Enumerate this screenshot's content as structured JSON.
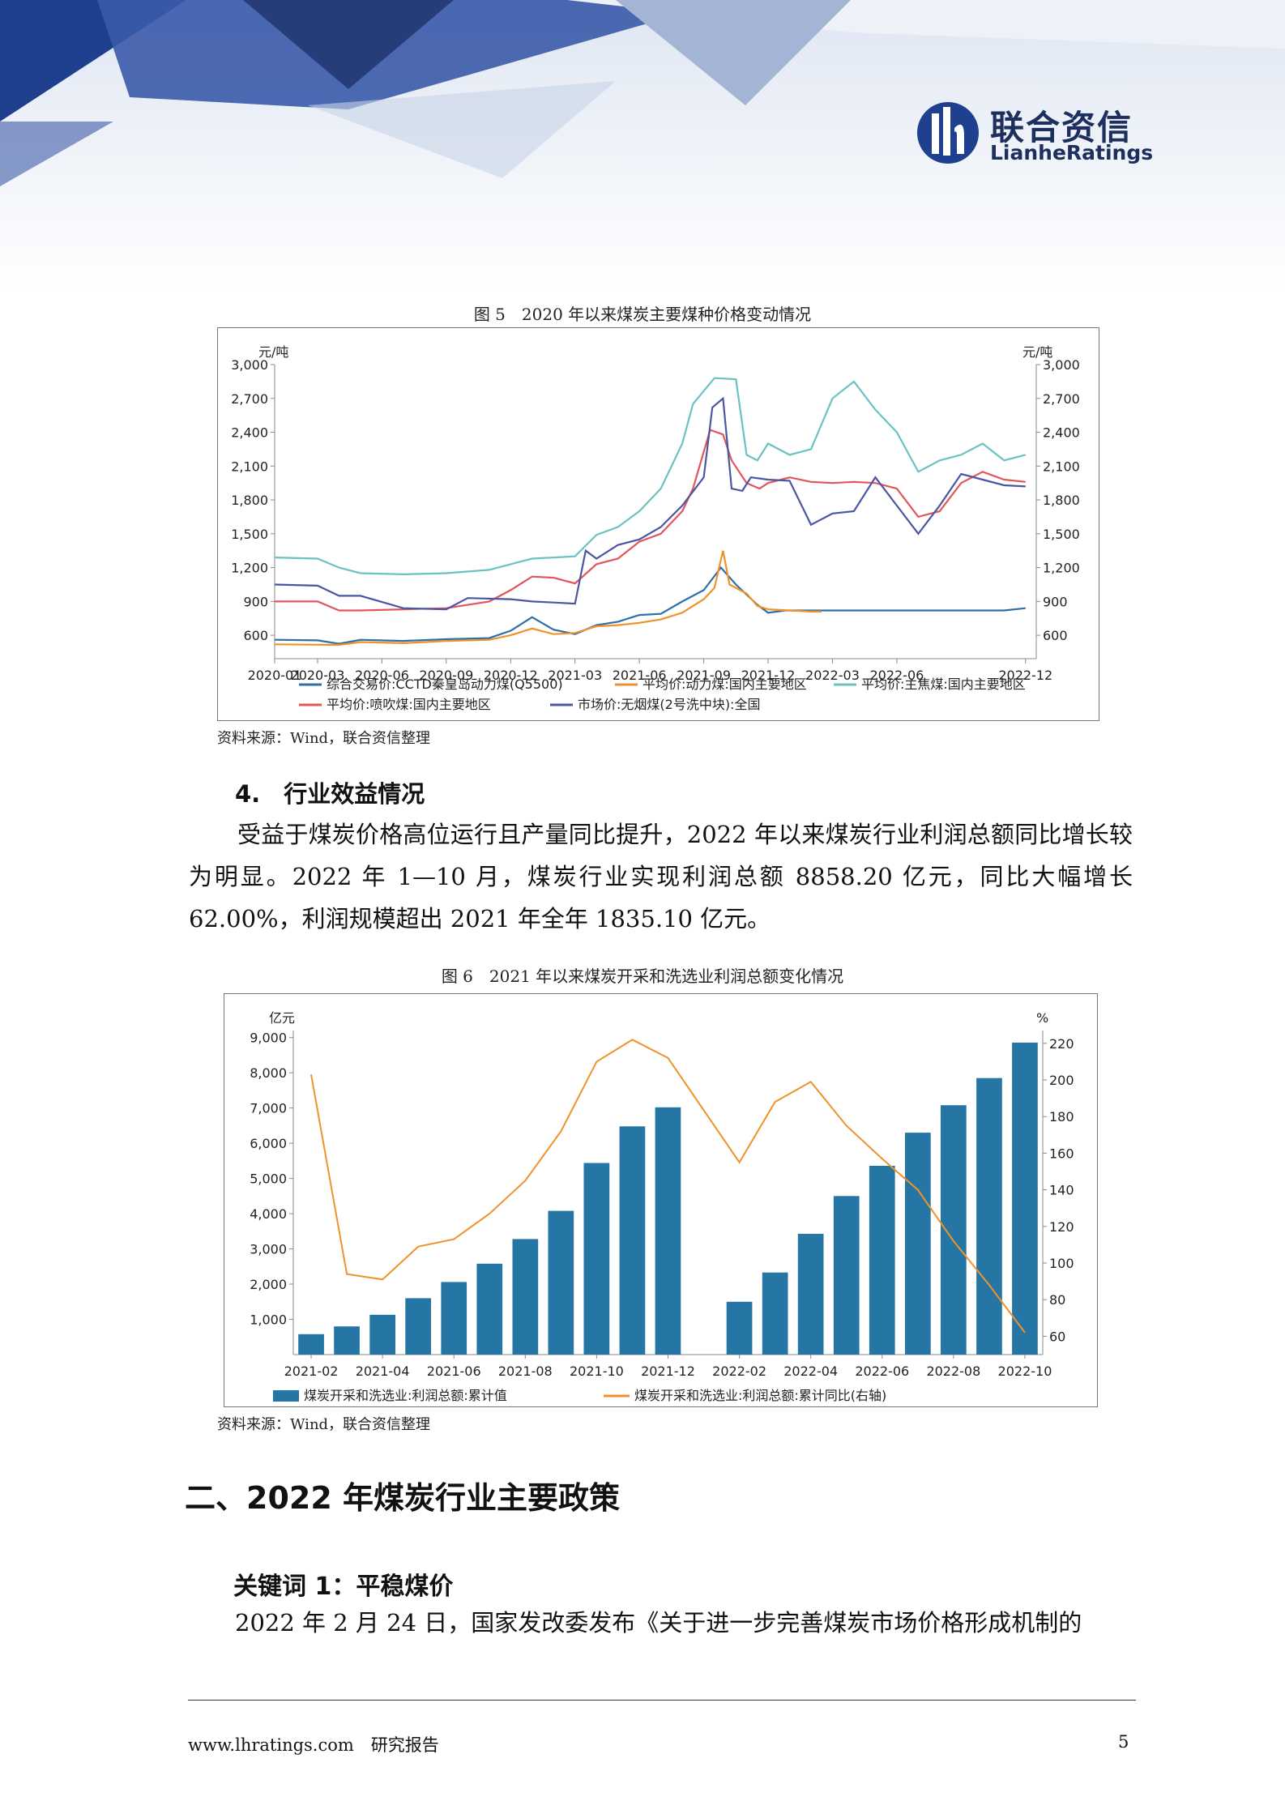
{
  "header": {
    "logo_cn": "联合资信",
    "logo_en": "LianheRatings"
  },
  "figure5": {
    "caption": "图 5　2020 年以来煤炭主要煤种价格变动情况",
    "source": "资料来源：Wind，联合资信整理",
    "chart_data": {
      "type": "line",
      "left_unit": "元/吨",
      "right_unit": "元/吨",
      "ylim": [
        450,
        3000
      ],
      "yticks": [
        "3,000",
        "2,700",
        "2,400",
        "2,100",
        "1,800",
        "1,500",
        "1,200",
        "900",
        "600"
      ],
      "ytick_values": [
        3000,
        2700,
        2400,
        2100,
        1800,
        1500,
        1200,
        900,
        600
      ],
      "xticks": [
        "2020-01",
        "2020-03",
        "2020-06",
        "2020-09",
        "2020-12",
        "2021-03",
        "2021-06",
        "2021-09",
        "2021-12",
        "2022-03",
        "2022-06",
        "2022-12"
      ],
      "xtick_months": [
        0,
        2,
        5,
        8,
        11,
        14,
        17,
        20,
        23,
        26,
        29,
        35
      ],
      "xlim_months": [
        0,
        35.5
      ],
      "series": [
        {
          "name": "综合交易价:CCTD秦皇岛动力煤(Q5500)",
          "color": "#2e6fa8",
          "points": [
            [
              0,
              560
            ],
            [
              2,
              555
            ],
            [
              3,
              525
            ],
            [
              4,
              560
            ],
            [
              6,
              550
            ],
            [
              8,
              565
            ],
            [
              10,
              575
            ],
            [
              11,
              640
            ],
            [
              12,
              760
            ],
            [
              13,
              650
            ],
            [
              14,
              610
            ],
            [
              15,
              690
            ],
            [
              16,
              720
            ],
            [
              17,
              780
            ],
            [
              18,
              790
            ],
            [
              19,
              900
            ],
            [
              20,
              1000
            ],
            [
              20.8,
              1200
            ],
            [
              21.5,
              1050
            ],
            [
              22.5,
              870
            ],
            [
              23,
              800
            ],
            [
              23.8,
              820
            ],
            [
              25,
              820
            ],
            [
              26,
              820
            ],
            [
              28,
              820
            ],
            [
              30,
              820
            ],
            [
              34,
              820
            ],
            [
              35,
              840
            ]
          ]
        },
        {
          "name": "平均价:动力煤:国内主要地区",
          "color": "#f0922b",
          "points": [
            [
              0,
              520
            ],
            [
              3,
              515
            ],
            [
              4,
              540
            ],
            [
              6,
              530
            ],
            [
              8,
              550
            ],
            [
              10,
              560
            ],
            [
              11,
              600
            ],
            [
              12,
              660
            ],
            [
              13,
              610
            ],
            [
              14,
              620
            ],
            [
              15,
              680
            ],
            [
              16,
              690
            ],
            [
              17,
              710
            ],
            [
              18,
              740
            ],
            [
              19,
              800
            ],
            [
              20,
              920
            ],
            [
              20.5,
              1020
            ],
            [
              20.9,
              1350
            ],
            [
              21.2,
              1050
            ],
            [
              22,
              970
            ],
            [
              22.5,
              860
            ],
            [
              23,
              830
            ],
            [
              24,
              820
            ],
            [
              25,
              810
            ],
            [
              25.5,
              810
            ]
          ]
        },
        {
          "name": "平均价:主焦煤:国内主要地区",
          "color": "#6ac2c2",
          "points": [
            [
              0,
              1290
            ],
            [
              2,
              1280
            ],
            [
              3,
              1200
            ],
            [
              4,
              1150
            ],
            [
              6,
              1140
            ],
            [
              8,
              1150
            ],
            [
              10,
              1180
            ],
            [
              11,
              1230
            ],
            [
              12,
              1280
            ],
            [
              13,
              1290
            ],
            [
              14,
              1300
            ],
            [
              15,
              1490
            ],
            [
              16,
              1560
            ],
            [
              17,
              1700
            ],
            [
              18,
              1900
            ],
            [
              19,
              2300
            ],
            [
              19.5,
              2650
            ],
            [
              20.5,
              2880
            ],
            [
              21.5,
              2870
            ],
            [
              22,
              2200
            ],
            [
              22.5,
              2150
            ],
            [
              23,
              2300
            ],
            [
              24,
              2200
            ],
            [
              25,
              2250
            ],
            [
              26,
              2700
            ],
            [
              27,
              2850
            ],
            [
              28,
              2600
            ],
            [
              29,
              2400
            ],
            [
              30,
              2050
            ],
            [
              31,
              2150
            ],
            [
              32,
              2200
            ],
            [
              33,
              2300
            ],
            [
              34,
              2150
            ],
            [
              35,
              2200
            ]
          ]
        },
        {
          "name": "平均价:喷吹煤:国内主要地区",
          "color": "#e0565a",
          "points": [
            [
              0,
              900
            ],
            [
              2,
              900
            ],
            [
              3,
              820
            ],
            [
              4,
              820
            ],
            [
              6,
              830
            ],
            [
              8,
              840
            ],
            [
              10,
              900
            ],
            [
              11,
              1000
            ],
            [
              12,
              1120
            ],
            [
              13,
              1110
            ],
            [
              14,
              1060
            ],
            [
              15,
              1230
            ],
            [
              16,
              1280
            ],
            [
              17,
              1430
            ],
            [
              18,
              1500
            ],
            [
              19,
              1700
            ],
            [
              19.5,
              1900
            ],
            [
              20.3,
              2420
            ],
            [
              20.9,
              2380
            ],
            [
              21.3,
              2150
            ],
            [
              22,
              1950
            ],
            [
              22.6,
              1900
            ],
            [
              23,
              1950
            ],
            [
              24,
              2000
            ],
            [
              25,
              1960
            ],
            [
              26,
              1950
            ],
            [
              27,
              1960
            ],
            [
              28,
              1950
            ],
            [
              29,
              1900
            ],
            [
              30,
              1650
            ],
            [
              31,
              1700
            ],
            [
              32,
              1950
            ],
            [
              33,
              2050
            ],
            [
              34,
              1980
            ],
            [
              35,
              1960
            ]
          ]
        },
        {
          "name": "市场价:无烟煤(2号洗中块):全国",
          "color": "#4b56a2",
          "points": [
            [
              0,
              1050
            ],
            [
              2,
              1040
            ],
            [
              3,
              950
            ],
            [
              4,
              950
            ],
            [
              6,
              840
            ],
            [
              8,
              830
            ],
            [
              9,
              930
            ],
            [
              11,
              920
            ],
            [
              12,
              900
            ],
            [
              13,
              890
            ],
            [
              14,
              880
            ],
            [
              14.5,
              1350
            ],
            [
              15,
              1280
            ],
            [
              16,
              1400
            ],
            [
              17,
              1450
            ],
            [
              18,
              1560
            ],
            [
              19,
              1750
            ],
            [
              20,
              2000
            ],
            [
              20.4,
              2620
            ],
            [
              20.9,
              2700
            ],
            [
              21.3,
              1900
            ],
            [
              21.8,
              1880
            ],
            [
              22.2,
              2000
            ],
            [
              23,
              1980
            ],
            [
              24,
              1970
            ],
            [
              25,
              1580
            ],
            [
              26,
              1680
            ],
            [
              27,
              1700
            ],
            [
              28,
              2000
            ],
            [
              29,
              1750
            ],
            [
              30,
              1500
            ],
            [
              31,
              1750
            ],
            [
              32,
              2030
            ],
            [
              33,
              1980
            ],
            [
              34,
              1930
            ],
            [
              35,
              1920
            ]
          ]
        }
      ]
    }
  },
  "section4": {
    "heading": "4.　行业效益情况",
    "paragraph": "受益于煤炭价格高位运行且产量同比提升，2022 年以来煤炭行业利润总额同比增长较为明显。2022 年 1—10 月，煤炭行业实现利润总额 8858.20 亿元，同比大幅增长 62.00%，利润规模超出 2021 年全年 1835.10 亿元。"
  },
  "figure6": {
    "caption": "图 6　2021 年以来煤炭开采和洗选业利润总额变化情况",
    "source": "资料来源：Wind，联合资信整理",
    "chart_data": {
      "type": "bar",
      "left_unit": "亿元",
      "right_unit": "%",
      "categories": [
        "2021-02",
        "2021-03",
        "2021-04",
        "2021-05",
        "2021-06",
        "2021-07",
        "2021-08",
        "2021-09",
        "2021-10",
        "2021-11",
        "2021-12",
        "2022-01",
        "2022-02",
        "2022-03",
        "2022-04",
        "2022-05",
        "2022-06",
        "2022-07",
        "2022-08",
        "2022-09",
        "2022-10"
      ],
      "xtick_labels": [
        "2021-02",
        "2021-04",
        "2021-06",
        "2021-08",
        "2021-10",
        "2021-12",
        "2022-02",
        "2022-04",
        "2022-06",
        "2022-08",
        "2022-10"
      ],
      "ylim": [
        0,
        9200
      ],
      "yticks": [
        "9,000",
        "8,000",
        "7,000",
        "6,000",
        "5,000",
        "4,000",
        "3,000",
        "2,000",
        "1,000"
      ],
      "ytick_values": [
        9000,
        8000,
        7000,
        6000,
        5000,
        4000,
        3000,
        2000,
        1000
      ],
      "y2lim": [
        50,
        227
      ],
      "y2ticks": [
        "220",
        "200",
        "180",
        "160",
        "140",
        "120",
        "100",
        "80",
        "60"
      ],
      "y2tick_values": [
        220,
        200,
        180,
        160,
        140,
        120,
        100,
        80,
        60
      ],
      "series": [
        {
          "name": "煤炭开采和洗选业:利润总额:累计值",
          "color": "#2576a4",
          "axis": "left",
          "values": [
            580,
            800,
            1130,
            1600,
            2060,
            2580,
            3280,
            4080,
            5440,
            6480,
            7020,
            null,
            1500,
            2330,
            3430,
            4500,
            5360,
            6300,
            7080,
            7850,
            8858.2
          ]
        },
        {
          "name": "煤炭开采和洗选业:利润总额:累计同比(右轴)",
          "color": "#f0922b",
          "axis": "right",
          "values": [
            203,
            94,
            91,
            109,
            113,
            127,
            145,
            172,
            210,
            222,
            212,
            null,
            155,
            188,
            199,
            175,
            157,
            140,
            112,
            88,
            62
          ]
        }
      ]
    }
  },
  "section2": {
    "heading": "二、2022 年煤炭行业主要政策",
    "keyword": "关键词 1：平稳煤价",
    "paragraph": "2022 年 2 月 24 日，国家发改委发布《关于进一步完善煤炭市场价格形成机制的"
  },
  "footer": {
    "site": "www.lhratings.com　研究报告",
    "page": "5"
  }
}
